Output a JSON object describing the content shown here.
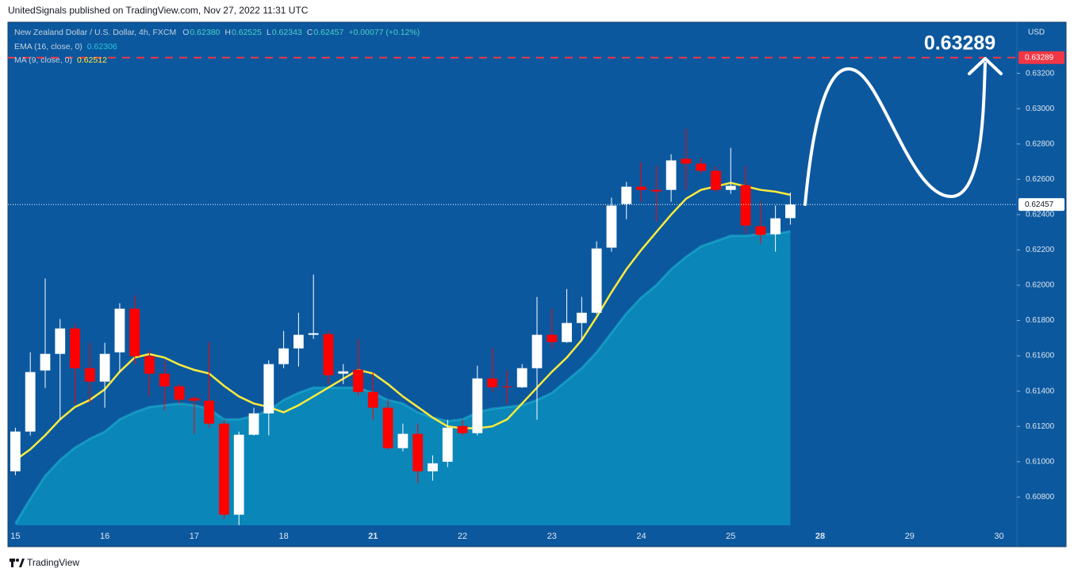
{
  "header": {
    "text": "UnitedSignals published on TradingView.com, Nov 27, 2022 11:31 UTC"
  },
  "footer": {
    "text": "TradingView"
  },
  "chart_data": {
    "type": "candlestick",
    "unit": "USD",
    "legend": {
      "symbol": "New Zealand Dollar / U.S. Dollar, 4h, FXCM",
      "fields": [
        {
          "key": "O",
          "text": "0.62380"
        },
        {
          "key": "H",
          "text": "0.62525"
        },
        {
          "key": "L",
          "text": "0.62343"
        },
        {
          "key": "C",
          "text": "0.62457"
        }
      ],
      "change": "+0.00077 (+0.12%)"
    },
    "up_color": "#ffffff",
    "down_color": "#ff0000",
    "open": [
      0.60946,
      0.61171,
      0.61517,
      0.61611,
      0.61755,
      0.6153,
      0.61454,
      0.6162,
      0.61867,
      0.61598,
      0.61499,
      0.61427,
      0.6136,
      0.61346,
      0.61216,
      0.607,
      0.61153,
      0.61274,
      0.61553,
      0.61642,
      0.61719,
      0.61723,
      0.61499,
      0.61521,
      0.61395,
      0.61306,
      0.61077,
      0.61158,
      0.60946,
      0.61,
      0.61202,
      0.61162,
      0.61472,
      0.61427,
      0.61422,
      0.6153,
      0.61719,
      0.61678,
      0.61786,
      0.61844,
      0.62213,
      0.6246,
      0.62558,
      0.6254,
      0.6254,
      0.62716,
      0.62689,
      0.62648,
      0.6254,
      0.62567,
      0.62334,
      0.62289,
      0.6238
    ],
    "high": [
      0.61193,
      0.6162,
      0.62038,
      0.61809,
      0.61777,
      0.61674,
      0.61674,
      0.61898,
      0.61943,
      0.61629,
      0.61575,
      0.6144,
      0.61373,
      0.61678,
      0.61238,
      0.61171,
      0.61306,
      0.61575,
      0.61741,
      0.61844,
      0.6206,
      0.61741,
      0.61553,
      0.61696,
      0.61508,
      0.61351,
      0.61216,
      0.61216,
      0.61036,
      0.61238,
      0.61238,
      0.61544,
      0.61642,
      0.61517,
      0.61553,
      0.61934,
      0.61867,
      0.61979,
      0.61934,
      0.62249,
      0.62496,
      0.62585,
      0.62698,
      0.62675,
      0.62742,
      0.62886,
      0.6272,
      0.62675,
      0.62778,
      0.62675,
      0.62473,
      0.62451,
      0.62525
    ],
    "low": [
      0.60924,
      0.61149,
      0.61418,
      0.61238,
      0.61328,
      0.61328,
      0.61306,
      0.61508,
      0.61553,
      0.61373,
      0.61292,
      0.61328,
      0.61158,
      0.61193,
      0.60677,
      0.60641,
      0.61149,
      0.61149,
      0.6153,
      0.61539,
      0.61696,
      0.6144,
      0.6144,
      0.61373,
      0.61238,
      0.61068,
      0.61059,
      0.60879,
      0.60893,
      0.60969,
      0.61149,
      0.61149,
      0.61395,
      0.61328,
      0.61418,
      0.61238,
      0.61642,
      0.61674,
      0.61687,
      0.61836,
      0.6219,
      0.62374,
      0.62473,
      0.62361,
      0.62473,
      0.6254,
      0.62635,
      0.62527,
      0.62518,
      0.62293,
      0.62235,
      0.6219,
      0.62343
    ],
    "close": [
      0.61171,
      0.61508,
      0.61611,
      0.61755,
      0.6153,
      0.61454,
      0.61611,
      0.61867,
      0.61598,
      0.61499,
      0.61427,
      0.61351,
      0.61346,
      0.61216,
      0.607,
      0.61153,
      0.61274,
      0.61553,
      0.61642,
      0.61719,
      0.61728,
      0.6149,
      0.61512,
      0.61395,
      0.61306,
      0.61077,
      0.61158,
      0.60946,
      0.60991,
      0.61193,
      0.61162,
      0.61472,
      0.61422,
      0.61422,
      0.6153,
      0.61719,
      0.61678,
      0.61786,
      0.61844,
      0.62208,
      0.62451,
      0.62558,
      0.6254,
      0.62531,
      0.62707,
      0.62689,
      0.62648,
      0.6254,
      0.62563,
      0.62338,
      0.62285,
      0.62379,
      0.62457
    ],
    "ema": {
      "name": "EMA (16, close, 0)",
      "color": "#26c6da",
      "fill": "#0a86b8",
      "values": [
        0.6065,
        0.6079,
        0.6092,
        0.6101,
        0.6108,
        0.6113,
        0.6117,
        0.6124,
        0.6128,
        0.6131,
        0.6132,
        0.6133,
        0.6132,
        0.613,
        0.6124,
        0.6124,
        0.6126,
        0.6129,
        0.6135,
        0.6139,
        0.6142,
        0.6142,
        0.6142,
        0.6142,
        0.6139,
        0.6135,
        0.6133,
        0.6128,
        0.6125,
        0.6123,
        0.6124,
        0.6128,
        0.613,
        0.6131,
        0.6132,
        0.6135,
        0.6139,
        0.6146,
        0.6153,
        0.6162,
        0.6173,
        0.6184,
        0.6193,
        0.62,
        0.6209,
        0.6216,
        0.6222,
        0.6225,
        0.6228,
        0.6228,
        0.6229,
        0.6229,
        0.62306
      ]
    },
    "ma": {
      "name": "MA (9, close, 0)",
      "color": "#ffeb3b",
      "values": [
        0.6101,
        0.6107,
        0.6115,
        0.6124,
        0.6131,
        0.6135,
        0.6141,
        0.6151,
        0.6159,
        0.6161,
        0.6159,
        0.6155,
        0.6152,
        0.615,
        0.6143,
        0.6137,
        0.6133,
        0.6131,
        0.6128,
        0.6132,
        0.6137,
        0.6142,
        0.6147,
        0.6152,
        0.615,
        0.6144,
        0.6137,
        0.6131,
        0.6125,
        0.612,
        0.6119,
        0.6119,
        0.612,
        0.6124,
        0.6133,
        0.6142,
        0.6151,
        0.6159,
        0.6169,
        0.6182,
        0.6196,
        0.6209,
        0.622,
        0.623,
        0.624,
        0.6249,
        0.6254,
        0.6256,
        0.6258,
        0.6256,
        0.6254,
        0.6253,
        0.62512
      ]
    },
    "target": 0.63289,
    "target_color": "#f23645",
    "xlim": [
      -0.5,
      67.2
    ],
    "xticks": [
      {
        "value": 0,
        "label": "15"
      },
      {
        "value": 6,
        "label": "16"
      },
      {
        "value": 12,
        "label": "17"
      },
      {
        "value": 18,
        "label": "18"
      },
      {
        "value": 24,
        "label": "21",
        "bold": true
      },
      {
        "value": 30,
        "label": "22"
      },
      {
        "value": 36,
        "label": "23"
      },
      {
        "value": 42,
        "label": "24"
      },
      {
        "value": 48,
        "label": "25"
      },
      {
        "value": 54,
        "label": "28",
        "bold": true
      },
      {
        "value": 60,
        "label": "29"
      },
      {
        "value": 66,
        "label": "30"
      }
    ],
    "ylim": [
      0.6064,
      0.6349
    ],
    "yticks": [
      {
        "value": 0.632,
        "label": "0.63200"
      },
      {
        "value": 0.63,
        "label": "0.63000"
      },
      {
        "value": 0.628,
        "label": "0.62800"
      },
      {
        "value": 0.626,
        "label": "0.62600"
      },
      {
        "value": 0.624,
        "label": "0.62400"
      },
      {
        "value": 0.622,
        "label": "0.62200"
      },
      {
        "value": 0.62,
        "label": "0.62000"
      },
      {
        "value": 0.618,
        "label": "0.61800"
      },
      {
        "value": 0.616,
        "label": "0.61600"
      },
      {
        "value": 0.614,
        "label": "0.61400"
      },
      {
        "value": 0.612,
        "label": "0.61200"
      },
      {
        "value": 0.61,
        "label": "0.61000"
      },
      {
        "value": 0.608,
        "label": "0.60800"
      }
    ],
    "grid": false
  }
}
